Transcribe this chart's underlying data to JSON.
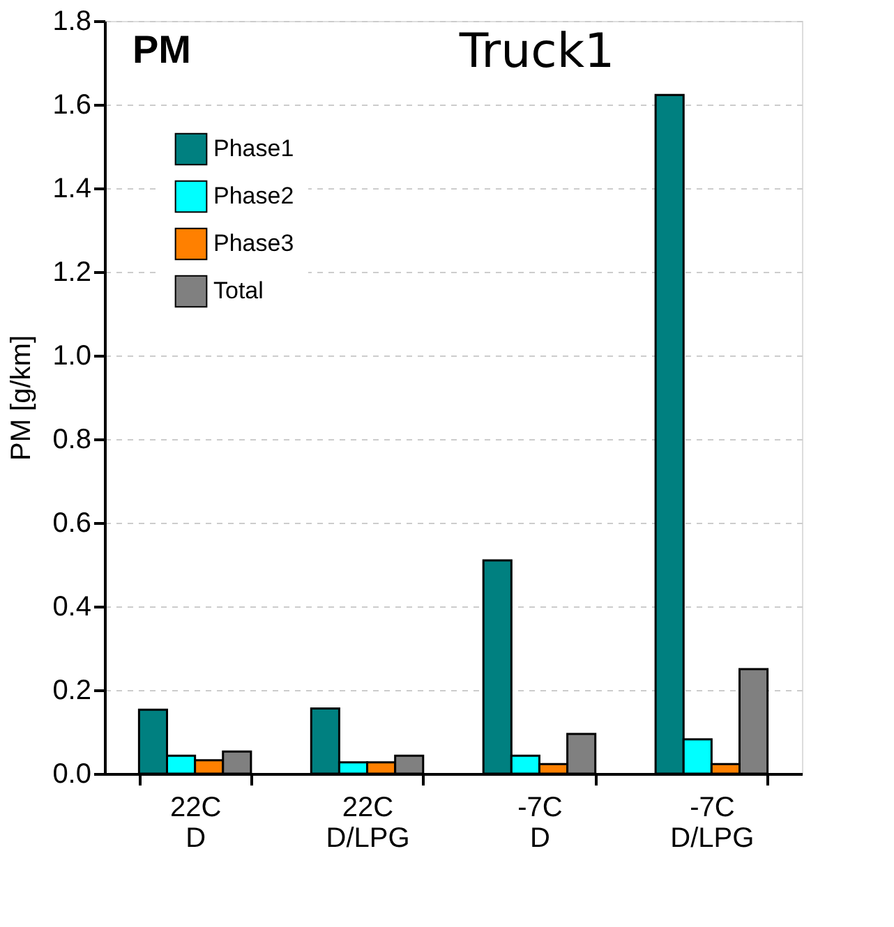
{
  "chart_data": {
    "type": "bar",
    "title": "Truck1",
    "ylabel": "PM [g/km]",
    "annotations": [
      "PM"
    ],
    "categories": [
      "22C\nD",
      "22C\nD/LPG",
      "-7C\nD",
      "-7C\nD/LPG"
    ],
    "series": [
      {
        "name": "Phase1",
        "color": "#008080",
        "values": [
          0.153,
          0.156,
          0.51,
          1.623
        ]
      },
      {
        "name": "Phase2",
        "color": "#00ffff",
        "values": [
          0.043,
          0.027,
          0.043,
          0.082
        ]
      },
      {
        "name": "Phase3",
        "color": "#ff8000",
        "values": [
          0.032,
          0.027,
          0.023,
          0.023
        ]
      },
      {
        "name": "Total",
        "color": "#808080",
        "values": [
          0.053,
          0.043,
          0.095,
          0.25
        ]
      }
    ],
    "ylim": [
      0,
      1.8
    ],
    "yticks": [
      {
        "value": 0,
        "label": "0.0"
      },
      0.2,
      0.4,
      0.6,
      0.8,
      {
        "value": 1,
        "label": "1.0"
      },
      1.2,
      1.4,
      1.6,
      1.8
    ],
    "grid": "y",
    "legend": "top left"
  }
}
